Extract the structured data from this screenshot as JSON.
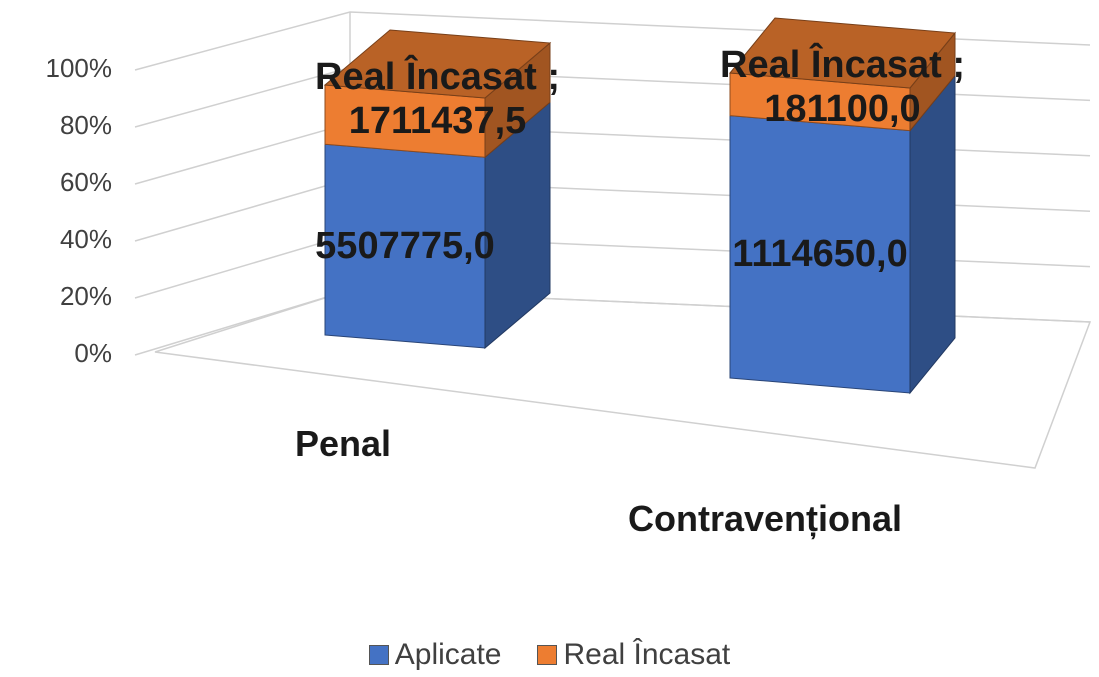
{
  "chart_data": {
    "type": "bar",
    "stacked": "percent",
    "categories": [
      "Penal",
      "Contravențional"
    ],
    "series": [
      {
        "name": "Aplicate",
        "color": "#4472c4",
        "values": [
          5507775.0,
          1114650.0
        ],
        "value_labels": [
          "5507775,0",
          "1114650,0"
        ]
      },
      {
        "name": "Real Încasat",
        "color": "#ed7d31",
        "values": [
          1711437.5,
          181100.0
        ],
        "value_labels": [
          "Real Încasat ; 1711437,5",
          "Real Încasat ; 181100,0"
        ]
      }
    ],
    "ylim": [
      0,
      100
    ],
    "yticks": [
      {
        "value": 0,
        "label": "0%"
      },
      {
        "value": 20,
        "label": "20%"
      },
      {
        "value": 40,
        "label": "40%"
      },
      {
        "value": 60,
        "label": "60%"
      },
      {
        "value": 80,
        "label": "80%"
      },
      {
        "value": 100,
        "label": "100%"
      }
    ],
    "grid": true,
    "legend": "bottom"
  }
}
